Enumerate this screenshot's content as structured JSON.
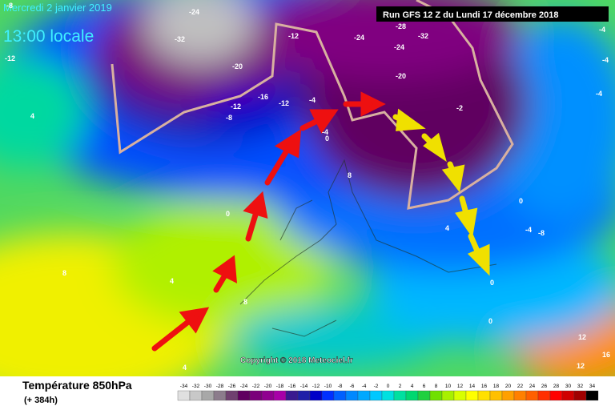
{
  "header": {
    "date": "Mercredi 2 janvier 2019",
    "time": "13:00 locale",
    "run": "Run GFS 12 Z du Lundi 17 décembre 2018"
  },
  "map": {
    "contour_labels": [
      "-8",
      "-32",
      "-12",
      "-24",
      "-20",
      "-12",
      "-16",
      "-12",
      "-8",
      "-4",
      "-24",
      "-28",
      "-32",
      "-24",
      "-20",
      "-2",
      "-12",
      "-4",
      "0",
      "0",
      "4",
      "8",
      "8",
      "4",
      "8",
      "0",
      "0",
      "4",
      "-4",
      "-8",
      "0",
      "-4",
      "-4",
      "-4",
      "12",
      "12",
      "16",
      "4"
    ],
    "copyright": "Copyright © 2018 Meteociel.fr"
  },
  "footer": {
    "title": "Température 850hPa",
    "lead": "(+ 384h)"
  },
  "legend": {
    "ticks": [
      -34,
      -32,
      -30,
      -28,
      -26,
      -24,
      -22,
      -20,
      -18,
      -16,
      -14,
      -12,
      -10,
      -8,
      -6,
      -4,
      -2,
      0,
      2,
      4,
      6,
      8,
      10,
      12,
      14,
      16,
      18,
      20,
      22,
      24,
      26,
      28,
      30,
      32,
      34
    ],
    "colors": [
      "#e0e0e0",
      "#c8c8c8",
      "#a8a8a8",
      "#8c7c8c",
      "#704070",
      "#600060",
      "#7a007a",
      "#900090",
      "#a800a8",
      "#3a1a90",
      "#2020a8",
      "#0000c8",
      "#0030ff",
      "#0060ff",
      "#0088ff",
      "#00a8ff",
      "#00c8ff",
      "#00e0e0",
      "#00e0a0",
      "#00d870",
      "#20d040",
      "#70e000",
      "#a8f000",
      "#d8ff00",
      "#ffff00",
      "#ffe000",
      "#ffc000",
      "#ffa000",
      "#ff8000",
      "#ff6000",
      "#ff3000",
      "#ff0000",
      "#d00000",
      "#a00000",
      "#000000"
    ]
  }
}
